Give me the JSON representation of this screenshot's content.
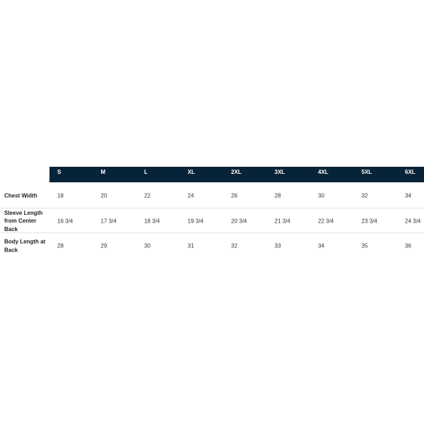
{
  "table": {
    "header": [
      "S",
      "M",
      "L",
      "XL",
      "2XL",
      "3XL",
      "4XL",
      "5XL",
      "6XL"
    ],
    "rows": [
      {
        "label": "Chest Width",
        "values": [
          18,
          20,
          22,
          24,
          26,
          28,
          30,
          32,
          34
        ]
      },
      {
        "label": "Sleeve Length from Center Back",
        "values": [
          "16 3/4",
          "17 3/4",
          "18 3/4",
          "19 3/4",
          "20 3/4",
          "21 3/4",
          "22 3/4",
          "23 3/4",
          "24 3/4"
        ]
      },
      {
        "label": "Body Length at Back",
        "values": [
          28,
          29,
          30,
          31,
          32,
          33,
          34,
          35,
          36
        ]
      }
    ]
  }
}
